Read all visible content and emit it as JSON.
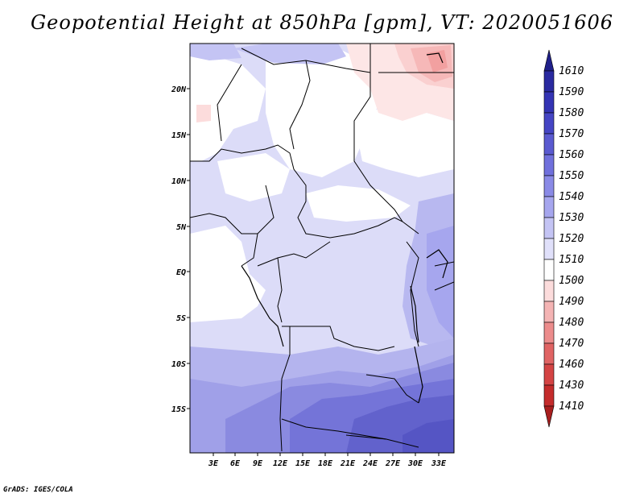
{
  "title": "Geopotential Height at 850hPa [gpm], VT: 2020051606",
  "credit": "GrADS: IGES/COLA",
  "map": {
    "lon_ticks": [
      "3E",
      "6E",
      "9E",
      "12E",
      "15E",
      "18E",
      "21E",
      "24E",
      "27E",
      "30E",
      "33E"
    ],
    "lat_ticks": [
      "20N",
      "15N",
      "10N",
      "5N",
      "EQ",
      "5S",
      "10S",
      "15S"
    ]
  },
  "colorbar": {
    "labels": [
      "1610",
      "1590",
      "1580",
      "1570",
      "1560",
      "1550",
      "1540",
      "1530",
      "1520",
      "1510",
      "1500",
      "1490",
      "1480",
      "1470",
      "1460",
      "1430",
      "1410"
    ],
    "colors": [
      "#20208a",
      "#2a2aa0",
      "#3434b4",
      "#4545c4",
      "#5a5ad0",
      "#7070dc",
      "#8a8ae6",
      "#a6a6ee",
      "#c4c4f4",
      "#e0e0fa",
      "#ffffff",
      "#fcdcdc",
      "#f4b4b4",
      "#ec8c8c",
      "#e06464",
      "#d44444",
      "#c42c2c",
      "#a81e1e"
    ]
  }
}
